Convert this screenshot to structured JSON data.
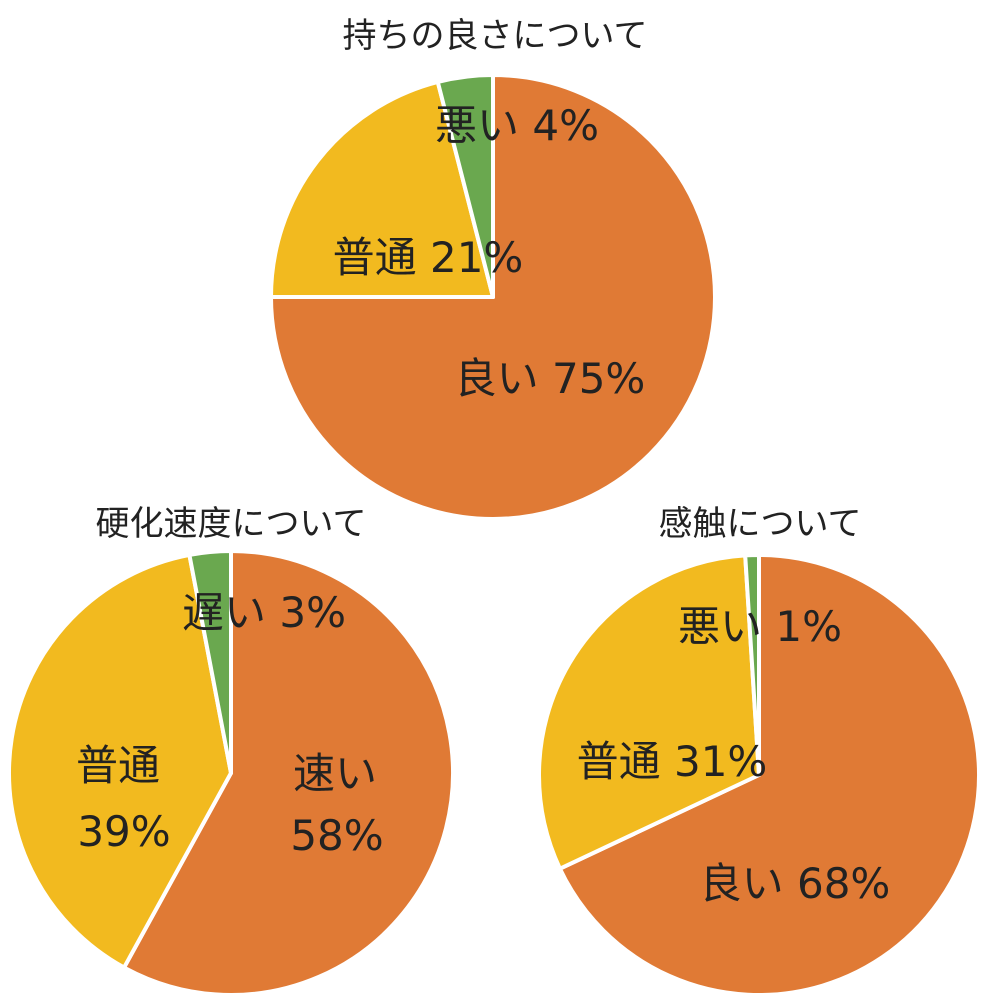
{
  "chart_data": [
    {
      "type": "pie",
      "title": "持ちの良さについて",
      "slices": [
        {
          "name": "良い",
          "value": 75,
          "color": "#E07A35"
        },
        {
          "name": "普通",
          "value": 21,
          "color": "#F2BA1F"
        },
        {
          "name": "悪い",
          "value": 4,
          "color": "#6AA84F"
        }
      ],
      "labels": [
        "良い 75%",
        "普通 21%",
        "悪い 4%"
      ]
    },
    {
      "type": "pie",
      "title": "硬化速度について",
      "slices": [
        {
          "name": "速い",
          "value": 58,
          "color": "#E07A35"
        },
        {
          "name": "普通",
          "value": 39,
          "color": "#F2BA1F"
        },
        {
          "name": "遅い",
          "value": 3,
          "color": "#6AA84F"
        }
      ],
      "labels": [
        "速い\n58%",
        "普通\n39%",
        "遅い 3%"
      ]
    },
    {
      "type": "pie",
      "title": "感触について",
      "slices": [
        {
          "name": "良い",
          "value": 68,
          "color": "#E07A35"
        },
        {
          "name": "普通",
          "value": 31,
          "color": "#F2BA1F"
        },
        {
          "name": "悪い",
          "value": 1,
          "color": "#6AA84F"
        }
      ],
      "labels": [
        "良い 68%",
        "普通 31%",
        "悪い 1%"
      ]
    }
  ]
}
